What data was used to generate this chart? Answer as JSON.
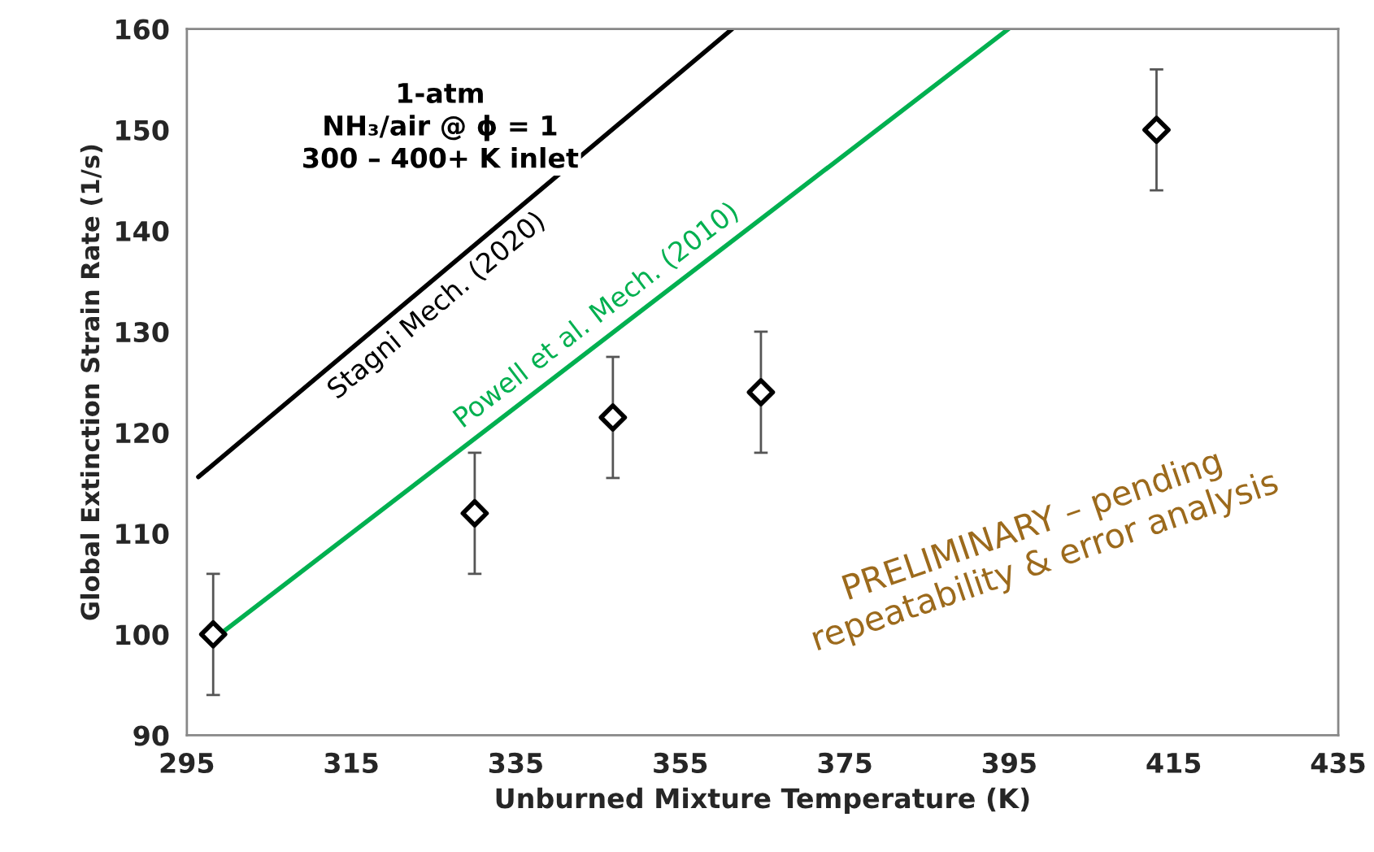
{
  "chart_data": {
    "type": "scatter",
    "xlabel": "Unburned Mixture Temperature (K)",
    "ylabel": "Global Extinction Strain Rate (1/s)",
    "xlim": [
      295,
      435
    ],
    "xticks": [
      295,
      315,
      335,
      355,
      375,
      395,
      415,
      435
    ],
    "ylim": [
      90,
      160
    ],
    "yticks": [
      90,
      100,
      110,
      120,
      130,
      140,
      150,
      160
    ],
    "series": [
      {
        "color": "#000000",
        "marker": "diamond",
        "x": [
          298.2,
          330,
          346.8,
          364.8,
          412.9
        ],
        "values": [
          100,
          112,
          121.5,
          124,
          150
        ],
        "errors": [
          6,
          6,
          6,
          6,
          6
        ]
      },
      {
        "type": "line",
        "name": "Stagni Mech. (2020)",
        "color": "#000000",
        "x": [
          296.4,
          361.3
        ],
        "values": [
          115.6,
          160
        ]
      },
      {
        "type": "line",
        "name": "Powell et al. Mech. (2010)",
        "color": "#00b050",
        "x": [
          298.2,
          394.9
        ],
        "values": [
          99.5,
          160
        ]
      }
    ],
    "annotations": [
      "1-atm\nNH₃/air @ ϕ = 1\n300 – 400+ K inlet",
      "PRELIMINARY – pending\nrepeatability & error analysis"
    ],
    "grid": false,
    "legend": false
  }
}
